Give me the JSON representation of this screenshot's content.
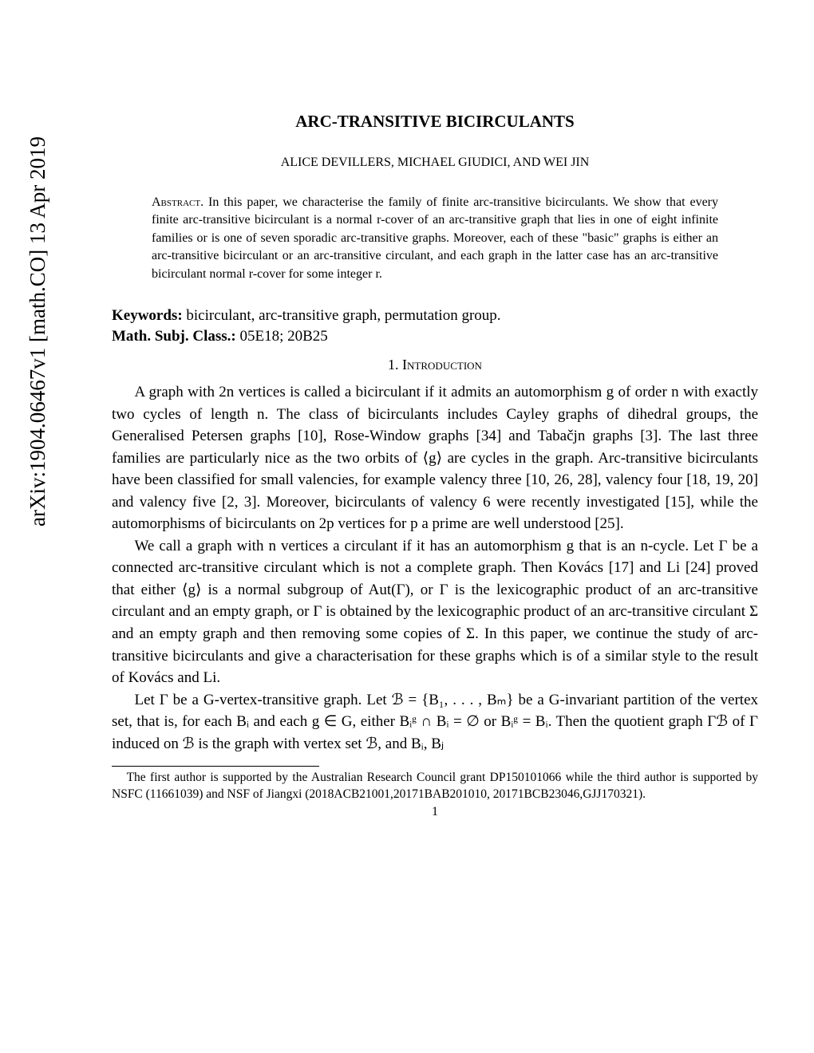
{
  "arxiv": {
    "id": "arXiv:1904.06467v1 [math.CO] 13 Apr 2019"
  },
  "title": "ARC-TRANSITIVE BICIRCULANTS",
  "authors": "ALICE DEVILLERS, MICHAEL GIUDICI, AND WEI JIN",
  "abstract": {
    "label": "Abstract.",
    "text": " In this paper, we characterise the family of finite arc-transitive bicirculants. We show that every finite arc-transitive bicirculant is a normal r-cover of an arc-transitive graph that lies in one of eight infinite families or is one of seven sporadic arc-transitive graphs. Moreover, each of these \"basic\" graphs is either an arc-transitive bicirculant or an arc-transitive circulant, and each graph in the latter case has an arc-transitive bicirculant normal r-cover for some integer r."
  },
  "keywords": {
    "label": "Keywords:",
    "text": " bicirculant, arc-transitive graph, permutation group."
  },
  "msc": {
    "label": "Math. Subj. Class.:",
    "text": " 05E18; 20B25"
  },
  "section": {
    "number": "1.",
    "title": "Introduction"
  },
  "paragraphs": {
    "p1": "A graph with 2n vertices is called a bicirculant if it admits an automorphism g of order n with exactly two cycles of length n. The class of bicirculants includes Cayley graphs of dihedral groups, the Generalised Petersen graphs [10], Rose-Window graphs [34] and Tabačjn graphs [3]. The last three families are particularly nice as the two orbits of ⟨g⟩ are cycles in the graph. Arc-transitive bicirculants have been classified for small valencies, for example valency three [10, 26, 28], valency four [18, 19, 20] and valency five [2, 3]. Moreover, bicirculants of valency 6 were recently investigated [15], while the automorphisms of bicirculants on 2p vertices for p a prime are well understood [25].",
    "p2": "We call a graph with n vertices a circulant if it has an automorphism g that is an n-cycle. Let Γ be a connected arc-transitive circulant which is not a complete graph. Then Kovács [17] and Li [24] proved that either ⟨g⟩ is a normal subgroup of Aut(Γ), or Γ is the lexicographic product of an arc-transitive circulant and an empty graph, or Γ is obtained by the lexicographic product of an arc-transitive circulant Σ and an empty graph and then removing some copies of Σ. In this paper, we continue the study of arc-transitive bicirculants and give a characterisation for these graphs which is of a similar style to the result of Kovács and Li.",
    "p3": "Let Γ be a G-vertex-transitive graph. Let ℬ = {B₁, . . . , Bₘ} be a G-invariant partition of the vertex set, that is, for each Bᵢ and each g ∈ G, either Bᵢᵍ ∩ Bᵢ = ∅ or Bᵢᵍ = Bᵢ. Then the quotient graph Γℬ of Γ induced on ℬ is the graph with vertex set ℬ, and Bᵢ, Bⱼ"
  },
  "footnote": "The first author is supported by the Australian Research Council grant DP150101066 while the third author is supported by NSFC (11661039) and NSF of Jiangxi (2018ACB21001,20171BAB201010, 20171BCB23046,GJJ170321).",
  "pagenum": "1"
}
